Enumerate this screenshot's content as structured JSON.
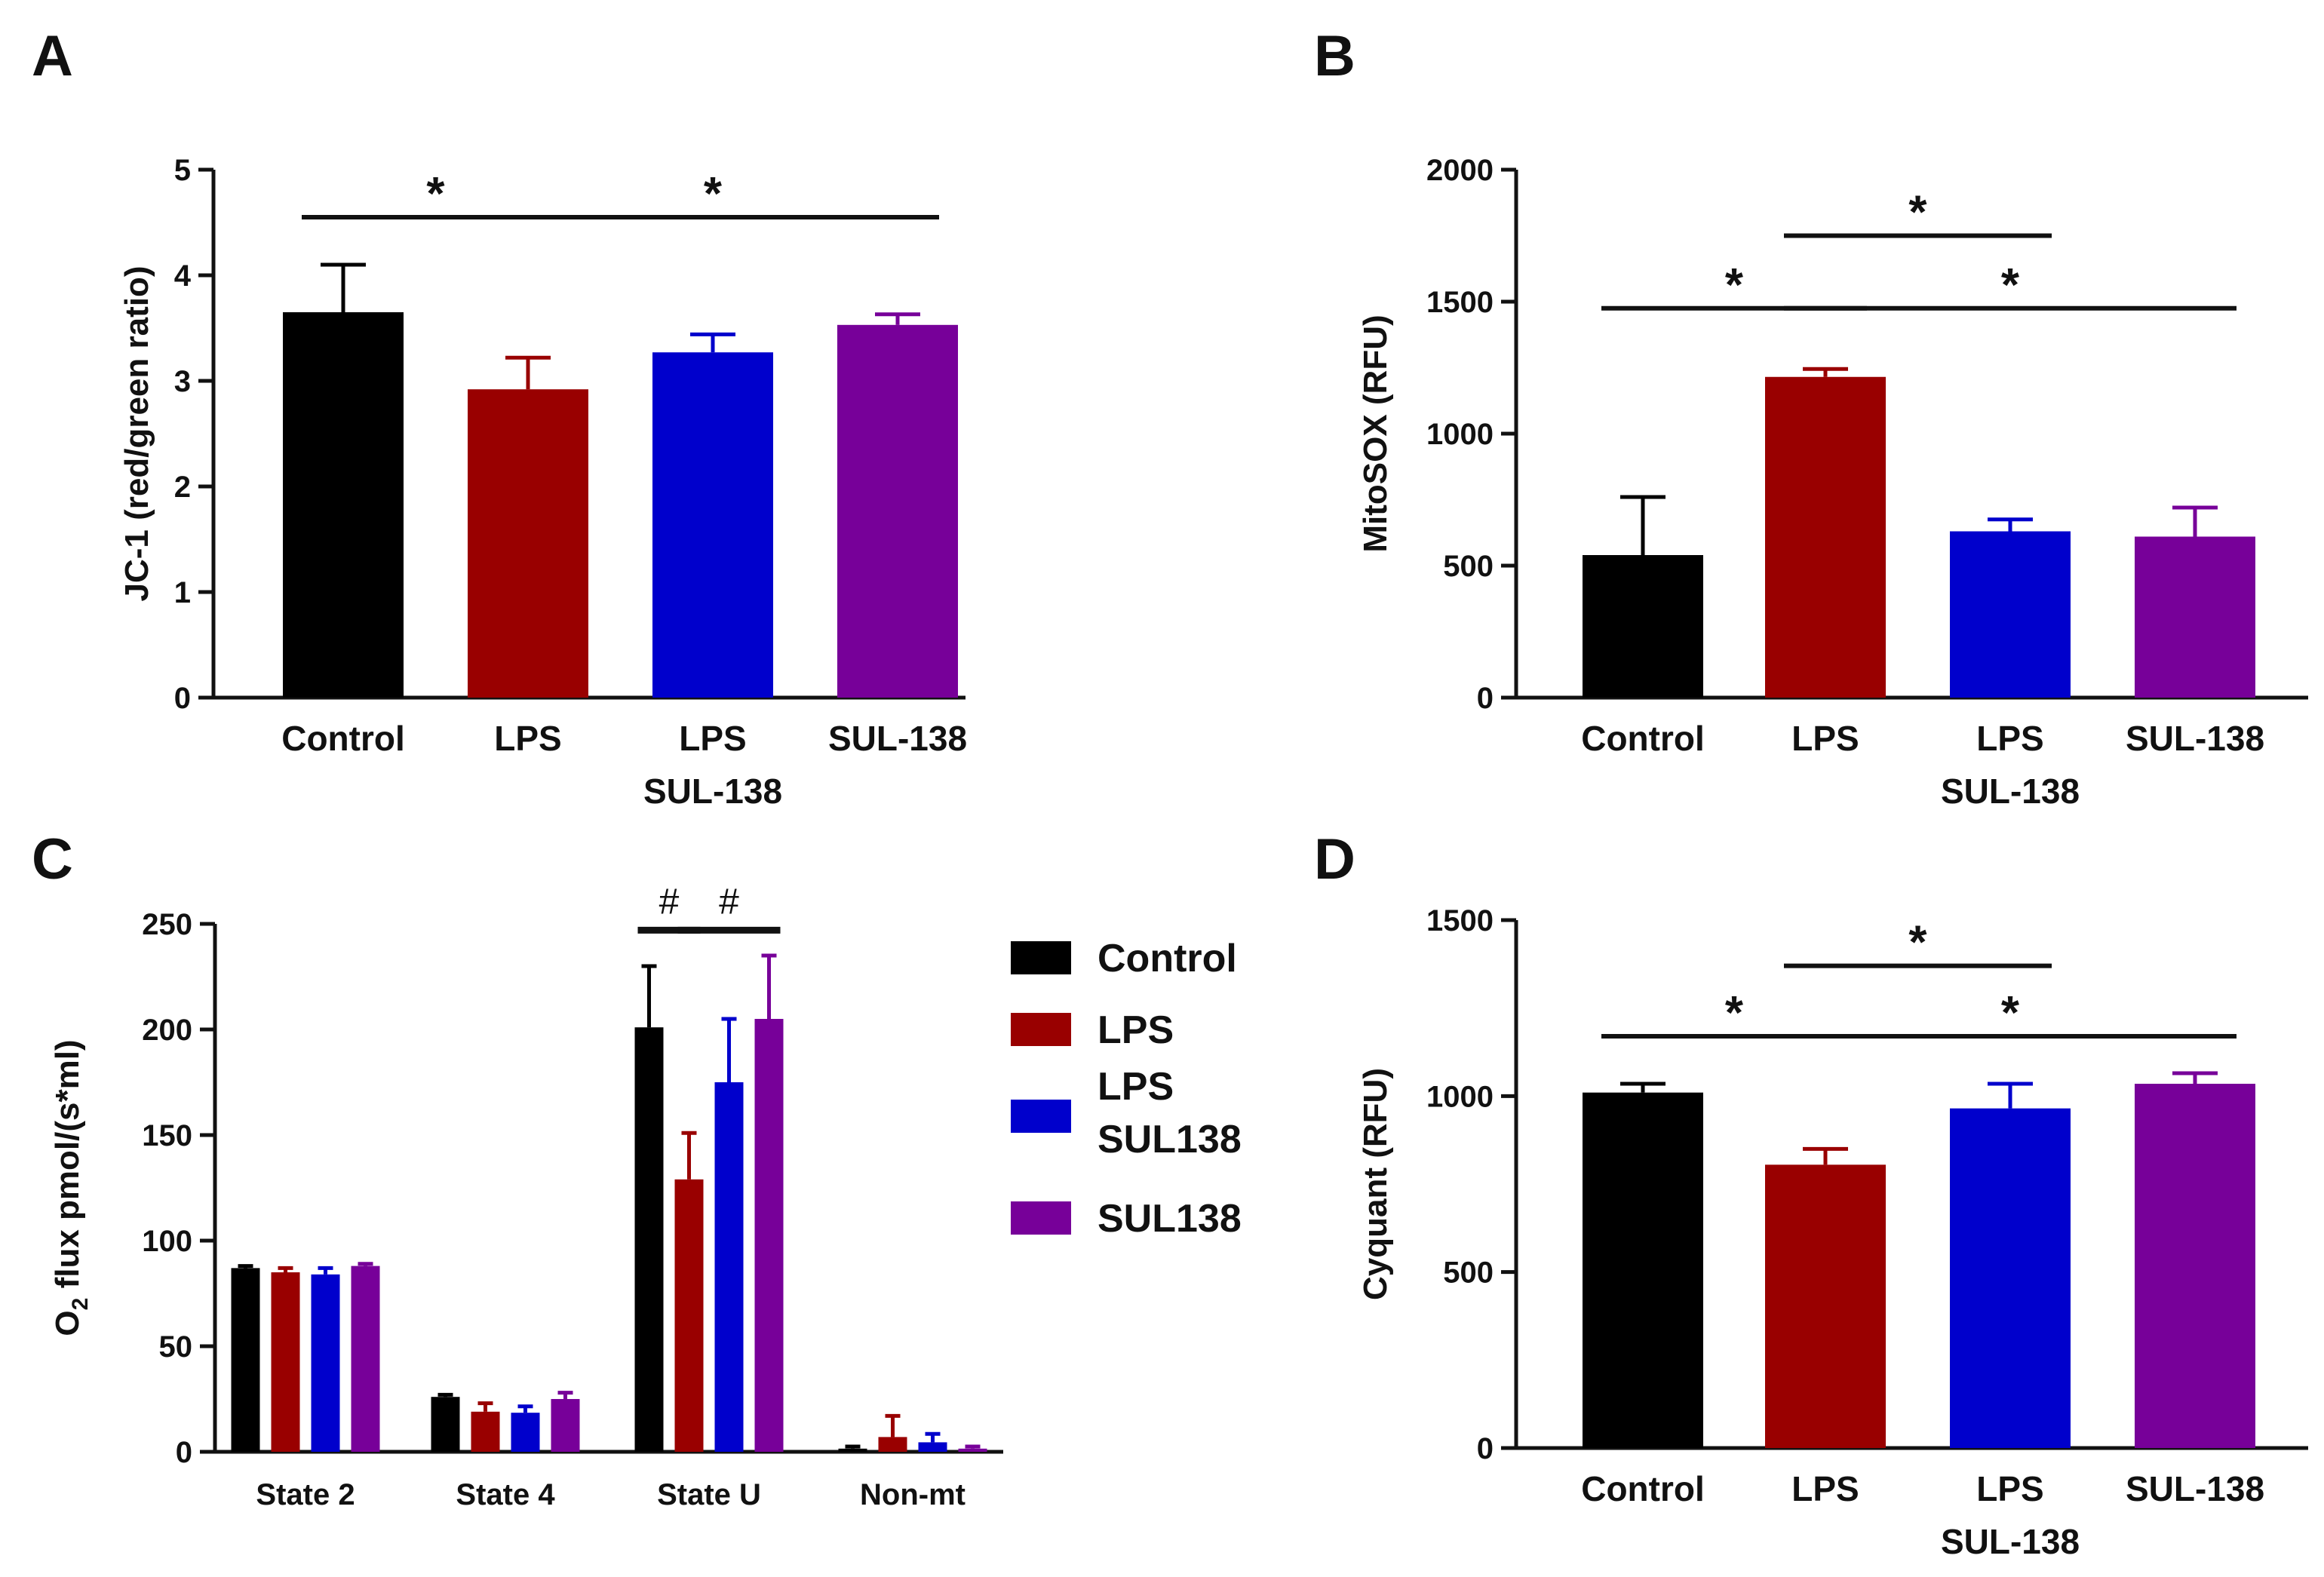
{
  "colors": {
    "Control": "#000000",
    "LPS": "#990000",
    "LPS SUL-138": "#0000cc",
    "SUL-138": "#770099"
  },
  "chart_data": [
    {
      "panel": "A",
      "type": "bar",
      "ylabel": "JC-1 (red/green ratio)",
      "ylim": [
        0,
        5
      ],
      "yticks": [
        0,
        1,
        2,
        3,
        4,
        5
      ],
      "categories": [
        [
          "Control"
        ],
        [
          "LPS"
        ],
        [
          "LPS",
          "SUL-138"
        ],
        [
          "SUL-138"
        ]
      ],
      "values": [
        3.65,
        2.92,
        3.27,
        3.53
      ],
      "errors": [
        0.45,
        0.3,
        0.17,
        0.1
      ],
      "significance": [
        {
          "from": 0,
          "to": 1,
          "y": 4.55,
          "label": "*"
        },
        {
          "from": 1,
          "to": 3,
          "y": 4.55,
          "label": "*"
        }
      ]
    },
    {
      "panel": "B",
      "type": "bar",
      "ylabel": "MitoSOX (RFU)",
      "ylim": [
        0,
        2000
      ],
      "yticks": [
        0,
        500,
        1000,
        1500,
        2000
      ],
      "categories": [
        [
          "Control"
        ],
        [
          "LPS"
        ],
        [
          "LPS",
          "SUL-138"
        ],
        [
          "SUL-138"
        ]
      ],
      "values": [
        540,
        1215,
        630,
        610
      ],
      "errors": [
        220,
        30,
        45,
        110
      ],
      "significance": [
        {
          "from": 0,
          "to": 1,
          "y": 1475,
          "label": "*"
        },
        {
          "from": 1,
          "to": 2,
          "y": 1750,
          "label": "*"
        },
        {
          "from": 1,
          "to": 3,
          "y": 1475,
          "label": "*"
        }
      ]
    },
    {
      "panel": "C",
      "type": "bar",
      "ylabel_main": "O",
      "ylabel_sub": "2",
      "ylabel_rest": " flux pmol/(s*ml)",
      "ylim": [
        0,
        250
      ],
      "yticks": [
        0,
        50,
        100,
        150,
        200,
        250
      ],
      "categories": [
        "State 2",
        "State 4",
        "State U",
        "Non-mt"
      ],
      "series": [
        {
          "name": "Control",
          "values": [
            87,
            26,
            201,
            1.5
          ],
          "errors": [
            1,
            1,
            29,
            1
          ]
        },
        {
          "name": "LPS",
          "values": [
            85,
            19,
            129,
            7
          ],
          "errors": [
            2,
            4,
            22,
            10
          ]
        },
        {
          "name": "LPS SUL138",
          "values": [
            84,
            18.5,
            175,
            4.5
          ],
          "errors": [
            3,
            3,
            30,
            4
          ]
        },
        {
          "name": "SUL138",
          "values": [
            88,
            25,
            205,
            1.5
          ],
          "errors": [
            1,
            3,
            30,
            1
          ]
        }
      ],
      "significance": [
        {
          "group": 2,
          "from": 0,
          "to": 1,
          "y": 247,
          "label": "#"
        },
        {
          "group": 2,
          "from": 1,
          "to": 3,
          "y": 247,
          "label": "#"
        }
      ],
      "legend": {
        "placement": "right",
        "entries": [
          [
            "Control"
          ],
          [
            "LPS"
          ],
          [
            "LPS",
            "SUL138"
          ],
          [
            "SUL138"
          ]
        ]
      }
    },
    {
      "panel": "D",
      "type": "bar",
      "ylabel": "Cyquant (RFU)",
      "ylim": [
        0,
        1500
      ],
      "yticks": [
        0,
        500,
        1000,
        1500
      ],
      "categories": [
        [
          "Control"
        ],
        [
          "LPS"
        ],
        [
          "LPS",
          "SUL-138"
        ],
        [
          "SUL-138"
        ]
      ],
      "values": [
        1010,
        805,
        965,
        1035
      ],
      "errors": [
        25,
        45,
        70,
        30
      ],
      "significance": [
        {
          "from": 0,
          "to": 1,
          "y": 1170,
          "label": "*"
        },
        {
          "from": 1,
          "to": 2,
          "y": 1370,
          "label": "*"
        },
        {
          "from": 1,
          "to": 3,
          "y": 1170,
          "label": "*"
        }
      ]
    }
  ]
}
